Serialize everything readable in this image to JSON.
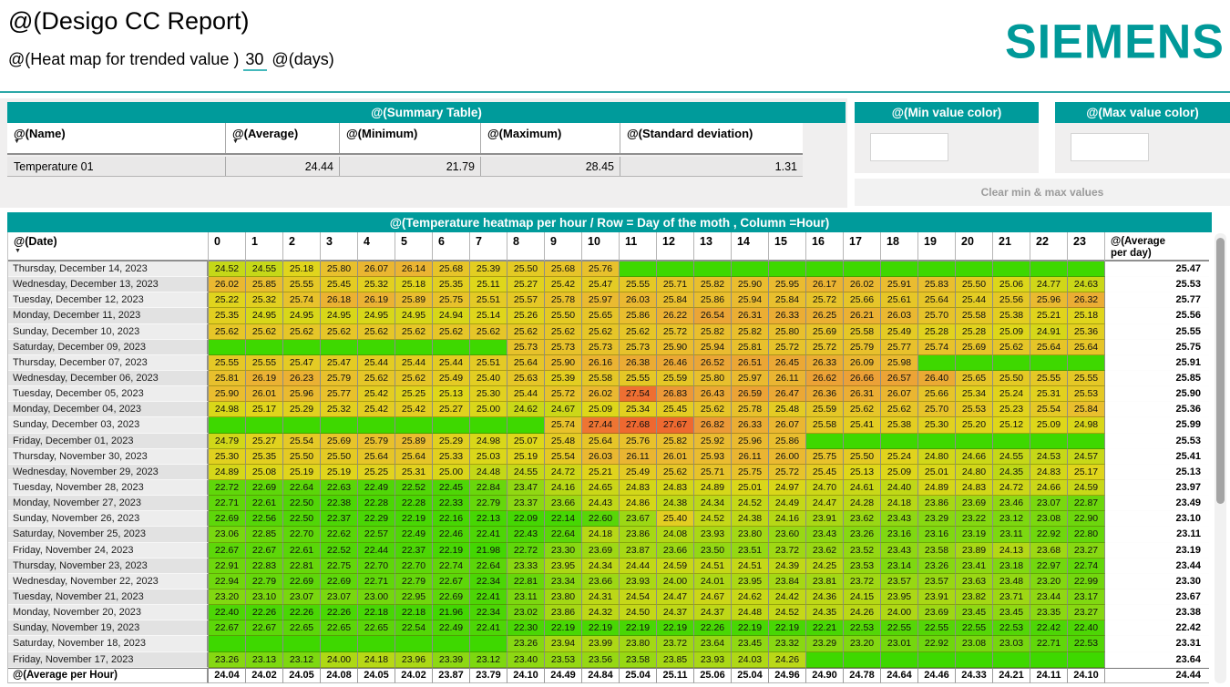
{
  "header": {
    "title": "@(Desigo CC Report)",
    "subtitle_prefix": "@(Heat map for trended value )",
    "days_value": "30",
    "subtitle_suffix": "@(days)",
    "logo": "SIEMENS"
  },
  "summary": {
    "title": "@(Summary Table)",
    "columns": {
      "name": "@(Name)",
      "average": "@(Average)",
      "minimum": "@(Minimum)",
      "maximum": "@(Maximum)",
      "stddev": "@(Standard deviation)"
    },
    "row": {
      "name": "Temperature 01",
      "average": "24.44",
      "minimum": "21.79",
      "maximum": "28.45",
      "stddev": "1.31"
    }
  },
  "color_panels": {
    "min_title": "@(Min value color)",
    "max_title": "@(Max value color)",
    "clear_label": "Clear min & max values"
  },
  "colors": {
    "teal_brand": "#009999",
    "teal_bar": "#009b9b",
    "heat_min_green": "#3ed800",
    "heat_mid_yellow": "#dfd71a",
    "heat_max_red": "#ee4426"
  },
  "heatmap": {
    "title": "@(Temperature heatmap per hour / Row = Day of the moth , Column =Hour)",
    "date_column_label": "@(Date)",
    "hour_labels": [
      "0",
      "1",
      "2",
      "3",
      "4",
      "5",
      "6",
      "7",
      "8",
      "9",
      "10",
      "11",
      "12",
      "13",
      "14",
      "15",
      "16",
      "17",
      "18",
      "19",
      "20",
      "21",
      "22",
      "23"
    ],
    "avg_column_label_line1": "@(Average",
    "avg_column_label_line2": "per day)",
    "footer_label": "@(Average per Hour)",
    "min_value": 21.79,
    "max_value": 28.45,
    "rows": [
      {
        "date": "Thursday, December 14, 2023",
        "values": [
          "24.52",
          "24.55",
          "25.18",
          "25.80",
          "26.07",
          "26.14",
          "25.68",
          "25.39",
          "25.50",
          "25.68",
          "25.76",
          null,
          null,
          null,
          null,
          null,
          null,
          null,
          null,
          null,
          null,
          null,
          null,
          null
        ],
        "avg": "25.47"
      },
      {
        "date": "Wednesday, December 13, 2023",
        "values": [
          "26.02",
          "25.85",
          "25.55",
          "25.45",
          "25.32",
          "25.18",
          "25.35",
          "25.11",
          "25.27",
          "25.42",
          "25.47",
          "25.55",
          "25.71",
          "25.82",
          "25.90",
          "25.95",
          "26.17",
          "26.02",
          "25.91",
          "25.83",
          "25.50",
          "25.06",
          "24.77",
          "24.63"
        ],
        "avg": "25.53"
      },
      {
        "date": "Tuesday, December 12, 2023",
        "values": [
          "25.22",
          "25.32",
          "25.74",
          "26.18",
          "26.19",
          "25.89",
          "25.75",
          "25.51",
          "25.57",
          "25.78",
          "25.97",
          "26.03",
          "25.84",
          "25.86",
          "25.94",
          "25.84",
          "25.72",
          "25.66",
          "25.61",
          "25.64",
          "25.44",
          "25.56",
          "25.96",
          "26.32"
        ],
        "avg": "25.77"
      },
      {
        "date": "Monday, December 11, 2023",
        "values": [
          "25.35",
          "24.95",
          "24.95",
          "24.95",
          "24.95",
          "24.95",
          "24.94",
          "25.14",
          "25.26",
          "25.50",
          "25.65",
          "25.86",
          "26.22",
          "26.54",
          "26.31",
          "26.33",
          "26.25",
          "26.21",
          "26.03",
          "25.70",
          "25.58",
          "25.38",
          "25.21",
          "25.18"
        ],
        "avg": "25.56"
      },
      {
        "date": "Sunday, December 10, 2023",
        "values": [
          "25.62",
          "25.62",
          "25.62",
          "25.62",
          "25.62",
          "25.62",
          "25.62",
          "25.62",
          "25.62",
          "25.62",
          "25.62",
          "25.62",
          "25.72",
          "25.82",
          "25.82",
          "25.80",
          "25.69",
          "25.58",
          "25.49",
          "25.28",
          "25.28",
          "25.09",
          "24.91",
          "25.36"
        ],
        "avg": "25.55"
      },
      {
        "date": "Saturday, December 09, 2023",
        "values": [
          null,
          null,
          null,
          null,
          null,
          null,
          null,
          null,
          "25.73",
          "25.73",
          "25.73",
          "25.73",
          "25.90",
          "25.94",
          "25.81",
          "25.72",
          "25.72",
          "25.79",
          "25.77",
          "25.74",
          "25.69",
          "25.62",
          "25.64",
          "25.64"
        ],
        "avg": "25.75"
      },
      {
        "date": "Thursday, December 07, 2023",
        "values": [
          "25.55",
          "25.55",
          "25.47",
          "25.47",
          "25.44",
          "25.44",
          "25.44",
          "25.51",
          "25.64",
          "25.90",
          "26.16",
          "26.38",
          "26.46",
          "26.52",
          "26.51",
          "26.45",
          "26.33",
          "26.09",
          "25.98",
          null,
          null,
          null,
          null,
          null
        ],
        "avg": "25.91"
      },
      {
        "date": "Wednesday, December 06, 2023",
        "values": [
          "25.81",
          "26.19",
          "26.23",
          "25.79",
          "25.62",
          "25.62",
          "25.49",
          "25.40",
          "25.63",
          "25.39",
          "25.58",
          "25.55",
          "25.59",
          "25.80",
          "25.97",
          "26.11",
          "26.62",
          "26.66",
          "26.57",
          "26.40",
          "25.65",
          "25.50",
          "25.55",
          "25.55"
        ],
        "avg": "25.85"
      },
      {
        "date": "Tuesday, December 05, 2023",
        "values": [
          "25.90",
          "26.01",
          "25.96",
          "25.77",
          "25.42",
          "25.25",
          "25.13",
          "25.30",
          "25.44",
          "25.72",
          "26.02",
          "27.54",
          "26.83",
          "26.43",
          "26.59",
          "26.47",
          "26.36",
          "26.31",
          "26.07",
          "25.66",
          "25.34",
          "25.24",
          "25.31",
          "25.53"
        ],
        "avg": "25.90"
      },
      {
        "date": "Monday, December 04, 2023",
        "values": [
          "24.98",
          "25.17",
          "25.29",
          "25.32",
          "25.42",
          "25.42",
          "25.27",
          "25.00",
          "24.62",
          "24.67",
          "25.09",
          "25.34",
          "25.45",
          "25.62",
          "25.78",
          "25.48",
          "25.59",
          "25.62",
          "25.62",
          "25.70",
          "25.53",
          "25.23",
          "25.54",
          "25.84"
        ],
        "avg": "25.36"
      },
      {
        "date": "Sunday, December 03, 2023",
        "values": [
          null,
          null,
          null,
          null,
          null,
          null,
          null,
          null,
          null,
          "25.74",
          "27.44",
          "27.68",
          "27.67",
          "26.82",
          "26.33",
          "26.07",
          "25.58",
          "25.41",
          "25.38",
          "25.30",
          "25.20",
          "25.12",
          "25.09",
          "24.98"
        ],
        "avg": "25.99"
      },
      {
        "date": "Friday, December 01, 2023",
        "values": [
          "24.79",
          "25.27",
          "25.54",
          "25.69",
          "25.79",
          "25.89",
          "25.29",
          "24.98",
          "25.07",
          "25.48",
          "25.64",
          "25.76",
          "25.82",
          "25.92",
          "25.96",
          "25.86",
          null,
          null,
          null,
          null,
          null,
          null,
          null,
          null
        ],
        "avg": "25.53"
      },
      {
        "date": "Thursday, November 30, 2023",
        "values": [
          "25.30",
          "25.35",
          "25.50",
          "25.50",
          "25.64",
          "25.64",
          "25.33",
          "25.03",
          "25.19",
          "25.54",
          "26.03",
          "26.11",
          "26.01",
          "25.93",
          "26.11",
          "26.00",
          "25.75",
          "25.50",
          "25.24",
          "24.80",
          "24.66",
          "24.55",
          "24.53",
          "24.57"
        ],
        "avg": "25.41"
      },
      {
        "date": "Wednesday, November 29, 2023",
        "values": [
          "24.89",
          "25.08",
          "25.19",
          "25.19",
          "25.25",
          "25.31",
          "25.00",
          "24.48",
          "24.55",
          "24.72",
          "25.21",
          "25.49",
          "25.62",
          "25.71",
          "25.75",
          "25.72",
          "25.45",
          "25.13",
          "25.09",
          "25.01",
          "24.80",
          "24.35",
          "24.83",
          "25.17"
        ],
        "avg": "25.13"
      },
      {
        "date": "Tuesday, November 28, 2023",
        "values": [
          "22.72",
          "22.69",
          "22.64",
          "22.63",
          "22.49",
          "22.52",
          "22.45",
          "22.84",
          "23.47",
          "24.16",
          "24.65",
          "24.83",
          "24.83",
          "24.89",
          "25.01",
          "24.97",
          "24.70",
          "24.61",
          "24.40",
          "24.89",
          "24.83",
          "24.72",
          "24.66",
          "24.59"
        ],
        "avg": "23.97"
      },
      {
        "date": "Monday, November 27, 2023",
        "values": [
          "22.71",
          "22.61",
          "22.50",
          "22.38",
          "22.28",
          "22.28",
          "22.33",
          "22.79",
          "23.37",
          "23.66",
          "24.43",
          "24.86",
          "24.38",
          "24.34",
          "24.52",
          "24.49",
          "24.47",
          "24.28",
          "24.18",
          "23.86",
          "23.69",
          "23.46",
          "23.07",
          "22.87"
        ],
        "avg": "23.49"
      },
      {
        "date": "Sunday, November 26, 2023",
        "values": [
          "22.69",
          "22.56",
          "22.50",
          "22.37",
          "22.29",
          "22.19",
          "22.16",
          "22.13",
          "22.09",
          "22.14",
          "22.60",
          "23.67",
          "25.40",
          "24.52",
          "24.38",
          "24.16",
          "23.91",
          "23.62",
          "23.43",
          "23.29",
          "23.22",
          "23.12",
          "23.08",
          "22.90"
        ],
        "avg": "23.10"
      },
      {
        "date": "Saturday, November 25, 2023",
        "values": [
          "23.06",
          "22.85",
          "22.70",
          "22.62",
          "22.57",
          "22.49",
          "22.46",
          "22.41",
          "22.43",
          "22.64",
          "24.18",
          "23.86",
          "24.08",
          "23.93",
          "23.80",
          "23.60",
          "23.43",
          "23.26",
          "23.16",
          "23.16",
          "23.19",
          "23.11",
          "22.92",
          "22.80"
        ],
        "avg": "23.11"
      },
      {
        "date": "Friday, November 24, 2023",
        "values": [
          "22.67",
          "22.67",
          "22.61",
          "22.52",
          "22.44",
          "22.37",
          "22.19",
          "21.98",
          "22.72",
          "23.30",
          "23.69",
          "23.87",
          "23.66",
          "23.50",
          "23.51",
          "23.72",
          "23.62",
          "23.52",
          "23.43",
          "23.58",
          "23.89",
          "24.13",
          "23.68",
          "23.27"
        ],
        "avg": "23.19"
      },
      {
        "date": "Thursday, November 23, 2023",
        "values": [
          "22.91",
          "22.83",
          "22.81",
          "22.75",
          "22.70",
          "22.70",
          "22.74",
          "22.64",
          "23.33",
          "23.95",
          "24.34",
          "24.44",
          "24.59",
          "24.51",
          "24.51",
          "24.39",
          "24.25",
          "23.53",
          "23.14",
          "23.26",
          "23.41",
          "23.18",
          "22.97",
          "22.74"
        ],
        "avg": "23.44"
      },
      {
        "date": "Wednesday, November 22, 2023",
        "values": [
          "22.94",
          "22.79",
          "22.69",
          "22.69",
          "22.71",
          "22.79",
          "22.67",
          "22.34",
          "22.81",
          "23.34",
          "23.66",
          "23.93",
          "24.00",
          "24.01",
          "23.95",
          "23.84",
          "23.81",
          "23.72",
          "23.57",
          "23.57",
          "23.63",
          "23.48",
          "23.20",
          "22.99"
        ],
        "avg": "23.30"
      },
      {
        "date": "Tuesday, November 21, 2023",
        "values": [
          "23.20",
          "23.10",
          "23.07",
          "23.07",
          "23.00",
          "22.95",
          "22.69",
          "22.41",
          "23.11",
          "23.80",
          "24.31",
          "24.54",
          "24.47",
          "24.67",
          "24.62",
          "24.42",
          "24.36",
          "24.15",
          "23.95",
          "23.91",
          "23.82",
          "23.71",
          "23.44",
          "23.17"
        ],
        "avg": "23.67"
      },
      {
        "date": "Monday, November 20, 2023",
        "values": [
          "22.40",
          "22.26",
          "22.26",
          "22.26",
          "22.18",
          "22.18",
          "21.96",
          "22.34",
          "23.02",
          "23.86",
          "24.32",
          "24.50",
          "24.37",
          "24.37",
          "24.48",
          "24.52",
          "24.35",
          "24.26",
          "24.00",
          "23.69",
          "23.45",
          "23.45",
          "23.35",
          "23.27"
        ],
        "avg": "23.38"
      },
      {
        "date": "Sunday, November 19, 2023",
        "values": [
          "22.67",
          "22.67",
          "22.65",
          "22.65",
          "22.65",
          "22.54",
          "22.49",
          "22.41",
          "22.30",
          "22.19",
          "22.19",
          "22.19",
          "22.19",
          "22.26",
          "22.19",
          "22.19",
          "22.21",
          "22.53",
          "22.55",
          "22.55",
          "22.55",
          "22.53",
          "22.42",
          "22.40"
        ],
        "avg": "22.42"
      },
      {
        "date": "Saturday, November 18, 2023",
        "values": [
          null,
          null,
          null,
          null,
          null,
          null,
          null,
          null,
          "23.26",
          "23.94",
          "23.99",
          "23.80",
          "23.72",
          "23.64",
          "23.45",
          "23.32",
          "23.29",
          "23.20",
          "23.01",
          "22.92",
          "23.08",
          "23.03",
          "22.71",
          "22.53"
        ],
        "avg": "23.31"
      },
      {
        "date": "Friday, November 17, 2023",
        "values": [
          "23.26",
          "23.13",
          "23.12",
          "24.00",
          "24.18",
          "23.96",
          "23.39",
          "23.12",
          "23.40",
          "23.53",
          "23.56",
          "23.58",
          "23.85",
          "23.93",
          "24.03",
          "24.26",
          null,
          null,
          null,
          null,
          null,
          null,
          null,
          null
        ],
        "avg": "23.64"
      }
    ],
    "footer": {
      "values": [
        "24.04",
        "24.02",
        "24.05",
        "24.08",
        "24.05",
        "24.02",
        "23.87",
        "23.79",
        "24.10",
        "24.49",
        "24.84",
        "25.04",
        "25.11",
        "25.06",
        "25.04",
        "24.96",
        "24.90",
        "24.78",
        "24.64",
        "24.46",
        "24.33",
        "24.21",
        "24.11",
        "24.10"
      ],
      "avg": "24.44"
    }
  }
}
